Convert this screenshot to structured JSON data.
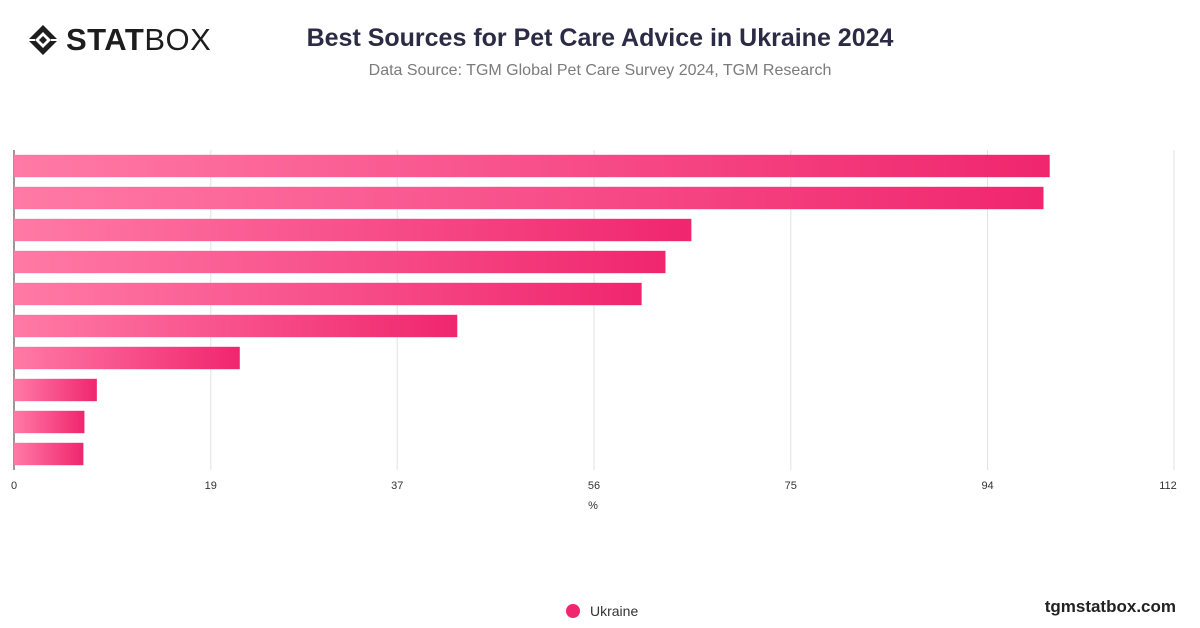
{
  "brand": {
    "logo_bold": "STAT",
    "logo_thin": "BOX",
    "logo_icon": "statbox-diamond-icon"
  },
  "footer": {
    "site": "tgmstatbox.com"
  },
  "chart_data": {
    "type": "bar",
    "orientation": "horizontal",
    "title": "Best Sources for Pet Care Advice in Ukraine 2024",
    "subtitle": "Data Source: TGM Global Pet Care Survey 2024, TGM Research",
    "xlabel": "%",
    "ylabel": "",
    "xlim": [
      0,
      112
    ],
    "xticks": [
      0,
      19,
      37,
      56,
      75,
      94,
      112
    ],
    "grid": true,
    "legend_position": "bottom-center",
    "categories": [
      "",
      "",
      "",
      "",
      "",
      "",
      "",
      "",
      "",
      ""
    ],
    "series": [
      {
        "name": "Ukraine",
        "color": "#f0266e",
        "color_light": "#ff7aa6",
        "values": [
          100,
          99.4,
          65.4,
          62.9,
          60.6,
          42.8,
          21.8,
          8,
          6.8,
          6.7
        ]
      }
    ]
  }
}
